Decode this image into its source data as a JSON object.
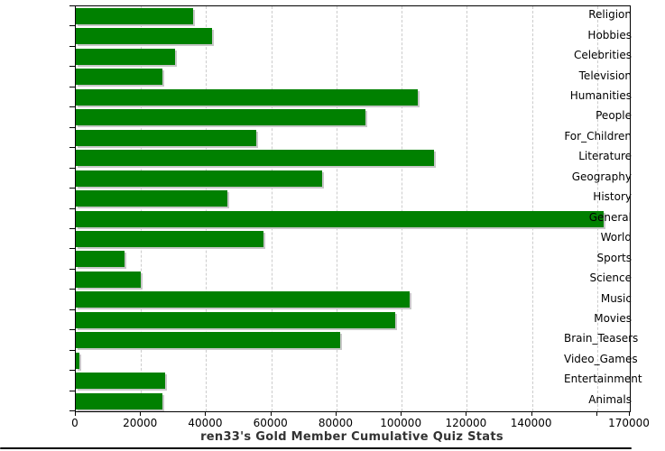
{
  "chart_data": {
    "type": "bar",
    "orientation": "horizontal",
    "title": "ren33's Gold Member Cumulative Quiz Stats",
    "categories": [
      "Religion",
      "Hobbies",
      "Celebrities",
      "Television",
      "Humanities",
      "People",
      "For_Children",
      "Literature",
      "Geography",
      "History",
      "General",
      "World",
      "Sports",
      "Science",
      "Music",
      "Movies",
      "Brain_Teasers",
      "Video_Games",
      "Entertainment",
      "Animals"
    ],
    "values": [
      36000,
      41800,
      30500,
      26500,
      105000,
      89000,
      55500,
      110000,
      75500,
      46500,
      162000,
      57500,
      15000,
      20000,
      102500,
      98000,
      81000,
      1200,
      27500,
      26500
    ],
    "xlabel": "",
    "ylabel": "",
    "xlim": [
      0,
      170000
    ],
    "x_tick_interval": 20000,
    "x_tick_labels": [
      "0",
      "20000",
      "40000",
      "60000",
      "80000",
      "100000",
      "120000",
      "140000"
    ],
    "x_axis_end_label": "170000",
    "grid": "vertical dashed gridlines every 20000",
    "legend": "none",
    "bar_color": "#008000",
    "bar_shadow_color": "#c8c8c8",
    "gridline_color": "#cccccc",
    "axis_color": "#000000",
    "title_color": "#333333",
    "background": "#ffffff"
  }
}
